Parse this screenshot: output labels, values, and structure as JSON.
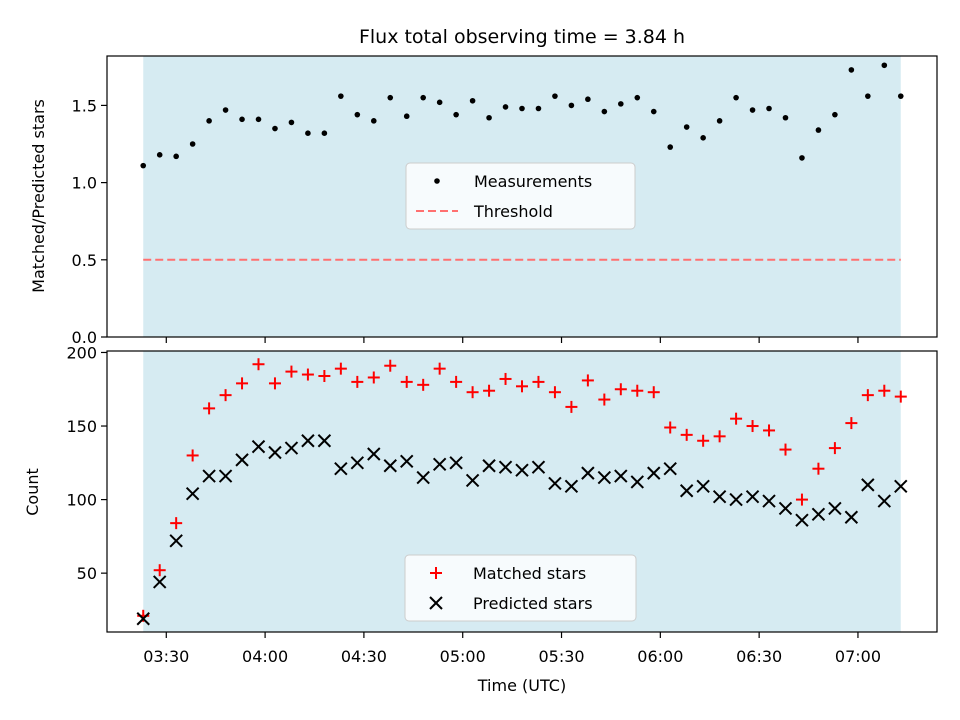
{
  "figure": {
    "title": "Flux total observing time = 3.84 h",
    "xlabel": "Time (UTC)",
    "x_ticks": [
      "03:30",
      "04:00",
      "04:30",
      "05:00",
      "05:30",
      "06:00",
      "06:30",
      "07:00"
    ],
    "colors": {
      "shade": "#add8e6",
      "measurements": "#000000",
      "threshold": "#ff7070",
      "matched": "#ff0000",
      "predicted": "#000000"
    }
  },
  "chart_data": [
    {
      "type": "scatter",
      "panel": "top",
      "ylabel": "Matched/Predicted stars",
      "xlim": [
        "03:12",
        "07:24"
      ],
      "ylim": [
        0,
        1.82
      ],
      "y_ticks": [
        "0.0",
        "0.5",
        "1.0",
        "1.5"
      ],
      "y_tick_values": [
        0,
        0.5,
        1.0,
        1.5
      ],
      "shaded_span": [
        "03:23",
        "07:13"
      ],
      "legend": {
        "placement": "center",
        "entries": [
          "Measurements",
          "Threshold"
        ]
      },
      "threshold": {
        "name": "Threshold",
        "value": 0.5,
        "style": "dashed"
      },
      "series": [
        {
          "name": "Measurements",
          "marker": "dot",
          "x": [
            "03:23",
            "03:28",
            "03:33",
            "03:38",
            "03:43",
            "03:48",
            "03:53",
            "03:58",
            "04:03",
            "04:08",
            "04:13",
            "04:18",
            "04:23",
            "04:28",
            "04:33",
            "04:38",
            "04:43",
            "04:48",
            "04:53",
            "04:58",
            "05:03",
            "05:08",
            "05:13",
            "05:18",
            "05:23",
            "05:28",
            "05:33",
            "05:38",
            "05:43",
            "05:48",
            "05:53",
            "05:58",
            "06:03",
            "06:08",
            "06:13",
            "06:18",
            "06:23",
            "06:28",
            "06:33",
            "06:38",
            "06:43",
            "06:48",
            "06:53",
            "06:58",
            "07:03",
            "07:08",
            "07:13"
          ],
          "y": [
            1.11,
            1.18,
            1.17,
            1.25,
            1.4,
            1.47,
            1.41,
            1.41,
            1.35,
            1.39,
            1.32,
            1.32,
            1.56,
            1.44,
            1.4,
            1.55,
            1.43,
            1.55,
            1.52,
            1.44,
            1.53,
            1.42,
            1.49,
            1.48,
            1.48,
            1.56,
            1.5,
            1.54,
            1.46,
            1.51,
            1.55,
            1.46,
            1.23,
            1.36,
            1.29,
            1.4,
            1.55,
            1.47,
            1.48,
            1.42,
            1.16,
            1.34,
            1.44,
            1.73,
            1.56,
            1.76,
            1.56
          ]
        }
      ]
    },
    {
      "type": "scatter",
      "panel": "bottom",
      "ylabel": "Count",
      "xlim": [
        "03:12",
        "07:24"
      ],
      "ylim": [
        10,
        201
      ],
      "y_ticks": [
        "50",
        "100",
        "150",
        "200"
      ],
      "y_tick_values": [
        50,
        100,
        150,
        200
      ],
      "shaded_span": [
        "03:23",
        "07:13"
      ],
      "legend": {
        "placement": "lower center",
        "entries": [
          "Matched stars",
          "Predicted stars"
        ]
      },
      "series": [
        {
          "name": "Matched stars",
          "marker": "plus",
          "x": [
            "03:23",
            "03:28",
            "03:33",
            "03:38",
            "03:43",
            "03:48",
            "03:53",
            "03:58",
            "04:03",
            "04:08",
            "04:13",
            "04:18",
            "04:23",
            "04:28",
            "04:33",
            "04:38",
            "04:43",
            "04:48",
            "04:53",
            "04:58",
            "05:03",
            "05:08",
            "05:13",
            "05:18",
            "05:23",
            "05:28",
            "05:33",
            "05:38",
            "05:43",
            "05:48",
            "05:53",
            "05:58",
            "06:03",
            "06:08",
            "06:13",
            "06:18",
            "06:23",
            "06:28",
            "06:33",
            "06:38",
            "06:43",
            "06:48",
            "06:53",
            "06:58",
            "07:03",
            "07:08",
            "07:13"
          ],
          "y": [
            21,
            52,
            84,
            130,
            162,
            171,
            179,
            192,
            179,
            187,
            185,
            184,
            189,
            180,
            183,
            191,
            180,
            178,
            189,
            180,
            173,
            174,
            182,
            177,
            180,
            173,
            163,
            181,
            168,
            175,
            174,
            173,
            149,
            144,
            140,
            143,
            155,
            150,
            147,
            134,
            100,
            121,
            135,
            152,
            171,
            174,
            170
          ]
        },
        {
          "name": "Predicted stars",
          "marker": "x",
          "x": [
            "03:23",
            "03:28",
            "03:33",
            "03:38",
            "03:43",
            "03:48",
            "03:53",
            "03:58",
            "04:03",
            "04:08",
            "04:13",
            "04:18",
            "04:23",
            "04:28",
            "04:33",
            "04:38",
            "04:43",
            "04:48",
            "04:53",
            "04:58",
            "05:03",
            "05:08",
            "05:13",
            "05:18",
            "05:23",
            "05:28",
            "05:33",
            "05:38",
            "05:43",
            "05:48",
            "05:53",
            "05:58",
            "06:03",
            "06:08",
            "06:13",
            "06:18",
            "06:23",
            "06:28",
            "06:33",
            "06:38",
            "06:43",
            "06:48",
            "06:53",
            "06:58",
            "07:03",
            "07:08",
            "07:13"
          ],
          "y": [
            19,
            44,
            72,
            104,
            116,
            116,
            127,
            136,
            132,
            135,
            140,
            140,
            121,
            125,
            131,
            123,
            126,
            115,
            124,
            125,
            113,
            123,
            122,
            120,
            122,
            111,
            109,
            118,
            115,
            116,
            112,
            118,
            121,
            106,
            109,
            102,
            100,
            102,
            99,
            94,
            86,
            90,
            94,
            88,
            110,
            99,
            109
          ]
        }
      ]
    }
  ]
}
